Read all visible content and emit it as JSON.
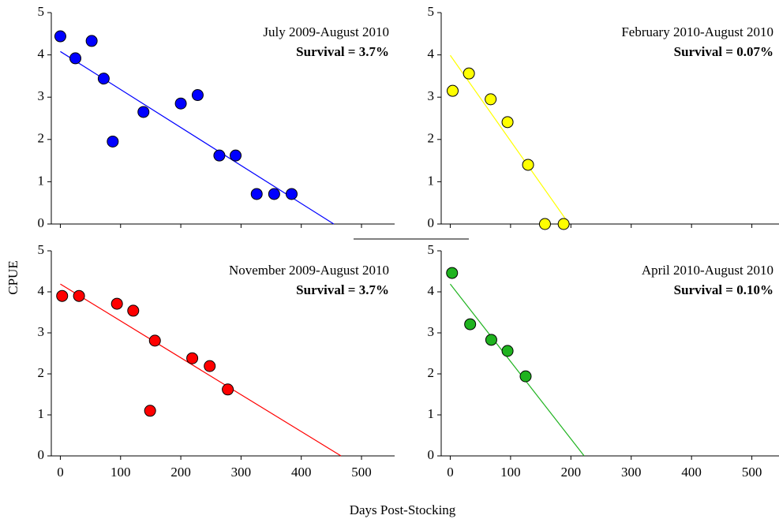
{
  "ylabel": "CPUE",
  "xlabel": "Days Post-Stocking",
  "chart_data": [
    {
      "type": "scatter",
      "title": "July 2009-August 2010",
      "subtitle": "Survival = 3.7%",
      "color": "#0000ff",
      "x": [
        0,
        25,
        52,
        72,
        87,
        138,
        200,
        228,
        264,
        291,
        326,
        355,
        384
      ],
      "values": [
        4.44,
        3.92,
        4.33,
        3.44,
        1.95,
        2.65,
        2.85,
        3.05,
        1.62,
        1.62,
        0.71,
        0.71,
        0.71
      ],
      "trendline": {
        "x": [
          0,
          454
        ],
        "values": [
          4.08,
          0
        ]
      },
      "xlim": [
        -15,
        555
      ],
      "ylim": [
        0,
        5
      ],
      "xticks": [
        0,
        100,
        200,
        300,
        400,
        500
      ],
      "show_xtick_labels": false,
      "yticks": [
        0,
        1,
        2,
        3,
        4,
        5
      ]
    },
    {
      "type": "scatter",
      "title": "February 2010-August 2010",
      "subtitle": "Survival = 0.07%",
      "color": "#ffff00",
      "x": [
        4,
        31,
        67,
        95,
        129,
        157,
        188
      ],
      "values": [
        3.15,
        3.56,
        2.95,
        2.41,
        1.4,
        0,
        0
      ],
      "trendline": {
        "x": [
          0,
          197
        ],
        "values": [
          3.99,
          0
        ]
      },
      "xlim": [
        -15,
        545
      ],
      "ylim": [
        0,
        5
      ],
      "xticks": [
        0,
        100,
        200,
        300,
        400,
        500
      ],
      "show_xtick_labels": false,
      "yticks": [
        0,
        1,
        2,
        3,
        4,
        5
      ]
    },
    {
      "type": "scatter",
      "title": "November 2009-August 2010",
      "subtitle": "Survival = 3.7%",
      "color": "#ff0000",
      "x": [
        3,
        31,
        94,
        121,
        149,
        157,
        219,
        248,
        278
      ],
      "values": [
        3.9,
        3.9,
        3.71,
        3.54,
        1.1,
        2.81,
        2.38,
        2.19,
        1.62
      ],
      "trendline": {
        "x": [
          0,
          466
        ],
        "values": [
          4.19,
          0
        ]
      },
      "xlim": [
        -15,
        555
      ],
      "ylim": [
        0,
        5
      ],
      "xticks": [
        0,
        100,
        200,
        300,
        400,
        500
      ],
      "show_xtick_labels": true,
      "yticks": [
        0,
        1,
        2,
        3,
        4,
        5
      ]
    },
    {
      "type": "scatter",
      "title": "April 2010-August 2010",
      "subtitle": "Survival = 0.10%",
      "color": "#1fb31f",
      "x": [
        3,
        33,
        68,
        95,
        125
      ],
      "values": [
        4.46,
        3.21,
        2.83,
        2.56,
        1.94
      ],
      "trendline": {
        "x": [
          0,
          222
        ],
        "values": [
          4.19,
          0
        ]
      },
      "xlim": [
        -15,
        545
      ],
      "ylim": [
        0,
        5
      ],
      "xticks": [
        0,
        100,
        200,
        300,
        400,
        500
      ],
      "show_xtick_labels": true,
      "yticks": [
        0,
        1,
        2,
        3,
        4,
        5
      ]
    }
  ]
}
